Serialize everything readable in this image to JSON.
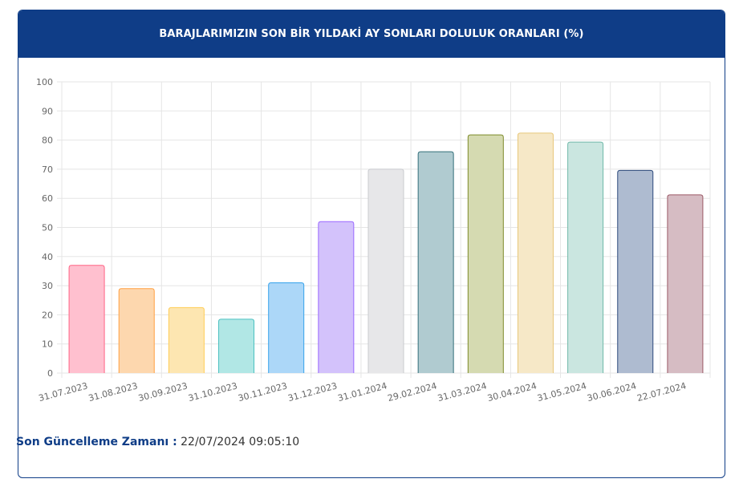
{
  "header": {
    "title": "BARAJLARIMIZIN SON BİR YILDAKİ AY SONLARI DOLULUK ORANLARI (%)"
  },
  "chart_data": {
    "type": "bar",
    "title": "BARAJLARIMIZIN SON BİR YILDAKİ AY SONLARI DOLULUK ORANLARI (%)",
    "categories": [
      "31.07.2023",
      "31.08.2023",
      "30.09.2023",
      "31.10.2023",
      "30.11.2023",
      "31.12.2023",
      "31.01.2024",
      "29.02.2024",
      "31.03.2024",
      "30.04.2024",
      "31.05.2024",
      "30.06.2024",
      "22.07.2024"
    ],
    "values": [
      37,
      29,
      22.5,
      18.5,
      31,
      52,
      70,
      76,
      81.8,
      82.4,
      79.3,
      69.6,
      61.2
    ],
    "ylim": [
      0,
      100
    ],
    "yticks": [
      0,
      10,
      20,
      30,
      40,
      50,
      60,
      70,
      80,
      90,
      100
    ],
    "grid": true,
    "colors": {
      "fills": [
        "#ffc0cf",
        "#fdd7ae",
        "#fde6b1",
        "#b1e7e5",
        "#acd7f8",
        "#d3c2fb",
        "#e7e7e9",
        "#b0cbd0",
        "#d5dab1",
        "#f6e8c7",
        "#cae6e0",
        "#aebbd0",
        "#d6bcc3"
      ],
      "borders": [
        "#ff6384",
        "#ff9f40",
        "#ffcd56",
        "#4bc0c0",
        "#36a2eb",
        "#9966ff",
        "#c9cbcf",
        "#336f7a",
        "#7d8a2a",
        "#e8c77a",
        "#6fb8a8",
        "#2d4a7c",
        "#9a5865"
      ]
    }
  },
  "footer": {
    "label": "Son Güncelleme Zamanı :",
    "value": "22/07/2024 09:05:10"
  }
}
